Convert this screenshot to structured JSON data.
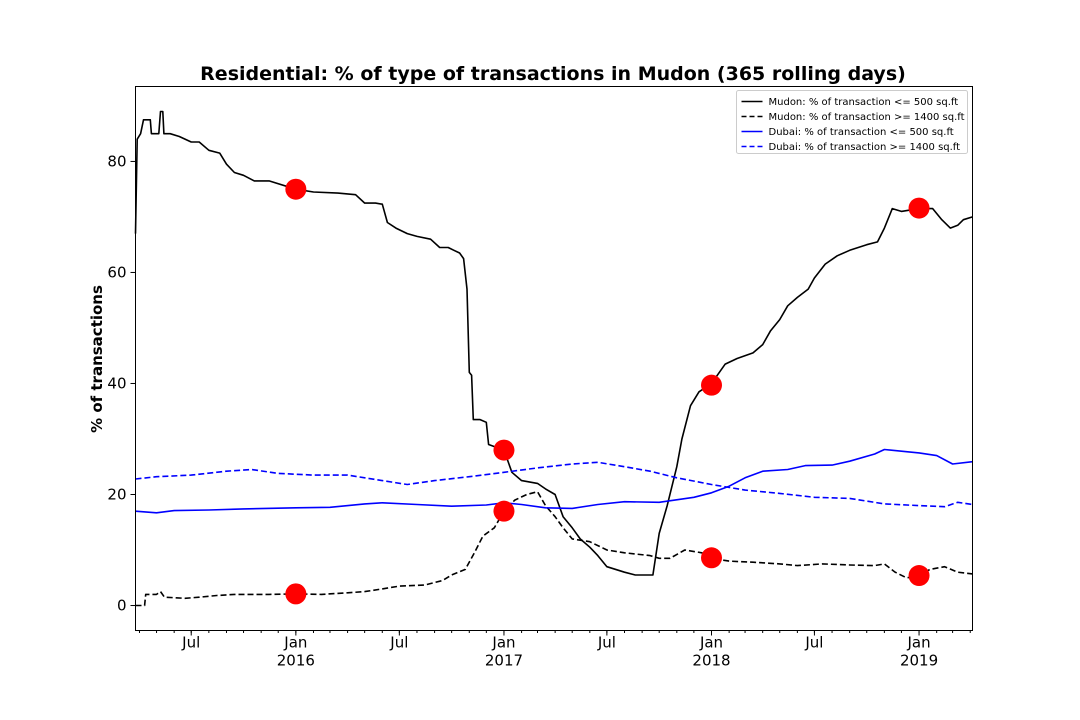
{
  "chart_data": {
    "type": "line",
    "title": "Residential: % of type of transactions in Mudon (365 rolling days)",
    "xlabel": "",
    "ylabel": "% of transactions",
    "xlim": [
      "2015-03-25",
      "2019-04-05"
    ],
    "ylim": [
      -4.5,
      93.5
    ],
    "yticks": [
      0,
      20,
      40,
      60,
      80
    ],
    "x_major_ticks": [
      {
        "date": "2015-07-01",
        "label": "Jul",
        "sublabel": ""
      },
      {
        "date": "2016-01-01",
        "label": "Jan",
        "sublabel": "2016"
      },
      {
        "date": "2016-07-01",
        "label": "Jul",
        "sublabel": ""
      },
      {
        "date": "2017-01-01",
        "label": "Jan",
        "sublabel": "2017"
      },
      {
        "date": "2017-07-01",
        "label": "Jul",
        "sublabel": ""
      },
      {
        "date": "2018-01-01",
        "label": "Jan",
        "sublabel": "2018"
      },
      {
        "date": "2018-07-01",
        "label": "Jul",
        "sublabel": ""
      },
      {
        "date": "2019-01-01",
        "label": "Jan",
        "sublabel": "2019"
      }
    ],
    "grid": false,
    "legend_position": "top-right",
    "series": [
      {
        "name": "Mudon: % of transaction <= 500 sq.ft",
        "color": "#000000",
        "style": "solid",
        "points": [
          [
            "2015-03-25",
            67
          ],
          [
            "2015-03-28",
            84
          ],
          [
            "2015-04-03",
            85
          ],
          [
            "2015-04-08",
            87.5
          ],
          [
            "2015-04-20",
            87.5
          ],
          [
            "2015-04-22",
            85
          ],
          [
            "2015-05-05",
            85
          ],
          [
            "2015-05-08",
            89
          ],
          [
            "2015-05-12",
            89
          ],
          [
            "2015-05-14",
            85
          ],
          [
            "2015-05-25",
            85
          ],
          [
            "2015-06-10",
            84.5
          ],
          [
            "2015-07-01",
            83.5
          ],
          [
            "2015-07-15",
            83.5
          ],
          [
            "2015-08-01",
            82
          ],
          [
            "2015-08-20",
            81.5
          ],
          [
            "2015-09-01",
            79.5
          ],
          [
            "2015-09-15",
            78
          ],
          [
            "2015-10-01",
            77.5
          ],
          [
            "2015-10-20",
            76.5
          ],
          [
            "2015-11-15",
            76.5
          ],
          [
            "2016-01-01",
            75
          ],
          [
            "2016-02-01",
            74.5
          ],
          [
            "2016-03-15",
            74.3
          ],
          [
            "2016-04-15",
            74
          ],
          [
            "2016-05-01",
            72.5
          ],
          [
            "2016-05-20",
            72.5
          ],
          [
            "2016-06-01",
            72.3
          ],
          [
            "2016-06-10",
            69
          ],
          [
            "2016-06-25",
            68
          ],
          [
            "2016-07-15",
            67
          ],
          [
            "2016-08-01",
            66.5
          ],
          [
            "2016-08-25",
            66
          ],
          [
            "2016-09-10",
            64.5
          ],
          [
            "2016-09-25",
            64.5
          ],
          [
            "2016-10-05",
            64
          ],
          [
            "2016-10-15",
            63.5
          ],
          [
            "2016-10-22",
            62.5
          ],
          [
            "2016-10-28",
            57
          ],
          [
            "2016-11-01",
            42
          ],
          [
            "2016-11-05",
            41.5
          ],
          [
            "2016-11-08",
            33.5
          ],
          [
            "2016-11-20",
            33.5
          ],
          [
            "2016-12-01",
            33
          ],
          [
            "2016-12-05",
            29
          ],
          [
            "2017-01-01",
            28
          ],
          [
            "2017-01-15",
            24
          ],
          [
            "2017-02-01",
            22.5
          ],
          [
            "2017-03-01",
            22
          ],
          [
            "2017-03-15",
            21
          ],
          [
            "2017-04-01",
            20
          ],
          [
            "2017-04-15",
            16
          ],
          [
            "2017-05-01",
            14
          ],
          [
            "2017-05-15",
            12
          ],
          [
            "2017-06-01",
            10.5
          ],
          [
            "2017-06-15",
            9
          ],
          [
            "2017-07-01",
            7
          ],
          [
            "2017-08-01",
            6
          ],
          [
            "2017-08-20",
            5.5
          ],
          [
            "2017-09-10",
            5.5
          ],
          [
            "2017-09-20",
            5.5
          ],
          [
            "2017-10-01",
            13
          ],
          [
            "2017-10-15",
            18
          ],
          [
            "2017-11-01",
            25
          ],
          [
            "2017-11-10",
            30
          ],
          [
            "2017-11-25",
            36
          ],
          [
            "2017-12-10",
            38.5
          ],
          [
            "2018-01-01",
            40
          ],
          [
            "2018-01-25",
            43.5
          ],
          [
            "2018-02-15",
            44.5
          ],
          [
            "2018-03-15",
            45.5
          ],
          [
            "2018-04-01",
            47
          ],
          [
            "2018-04-15",
            49.5
          ],
          [
            "2018-05-01",
            51.5
          ],
          [
            "2018-05-15",
            54
          ],
          [
            "2018-06-01",
            55.5
          ],
          [
            "2018-06-20",
            57
          ],
          [
            "2018-07-01",
            59
          ],
          [
            "2018-07-20",
            61.5
          ],
          [
            "2018-08-10",
            63
          ],
          [
            "2018-09-01",
            64
          ],
          [
            "2018-10-01",
            65
          ],
          [
            "2018-10-20",
            65.5
          ],
          [
            "2018-11-01",
            68
          ],
          [
            "2018-11-15",
            71.5
          ],
          [
            "2018-12-01",
            71
          ],
          [
            "2019-01-01",
            71.5
          ],
          [
            "2019-01-25",
            71.5
          ],
          [
            "2019-02-10",
            69.5
          ],
          [
            "2019-02-25",
            68
          ],
          [
            "2019-03-10",
            68.5
          ],
          [
            "2019-03-20",
            69.5
          ],
          [
            "2019-04-05",
            70
          ]
        ]
      },
      {
        "name": "Mudon: % of transaction >= 1400 sq.ft",
        "color": "#000000",
        "style": "dashed",
        "points": [
          [
            "2015-03-25",
            0
          ],
          [
            "2015-04-10",
            0
          ],
          [
            "2015-04-12",
            2
          ],
          [
            "2015-05-01",
            2
          ],
          [
            "2015-05-08",
            2.5
          ],
          [
            "2015-05-15",
            1.5
          ],
          [
            "2015-06-20",
            1.3
          ],
          [
            "2015-07-15",
            1.5
          ],
          [
            "2015-08-15",
            1.8
          ],
          [
            "2015-09-15",
            2
          ],
          [
            "2015-10-15",
            2
          ],
          [
            "2015-11-15",
            2
          ],
          [
            "2016-01-01",
            2.1
          ],
          [
            "2016-02-15",
            2
          ],
          [
            "2016-04-01",
            2.3
          ],
          [
            "2016-05-01",
            2.5
          ],
          [
            "2016-06-01",
            3
          ],
          [
            "2016-07-01",
            3.5
          ],
          [
            "2016-08-15",
            3.7
          ],
          [
            "2016-09-15",
            4.5
          ],
          [
            "2016-10-01",
            5.5
          ],
          [
            "2016-10-25",
            6.5
          ],
          [
            "2016-11-10",
            9.5
          ],
          [
            "2016-11-25",
            12.5
          ],
          [
            "2016-12-15",
            14
          ],
          [
            "2017-01-01",
            17
          ],
          [
            "2017-01-20",
            19
          ],
          [
            "2017-02-10",
            20
          ],
          [
            "2017-03-01",
            20.5
          ],
          [
            "2017-03-15",
            18
          ],
          [
            "2017-04-01",
            16
          ],
          [
            "2017-04-15",
            14
          ],
          [
            "2017-05-01",
            12
          ],
          [
            "2017-06-01",
            11.5
          ],
          [
            "2017-07-01",
            10
          ],
          [
            "2017-08-01",
            9.5
          ],
          [
            "2017-09-15",
            9
          ],
          [
            "2017-10-01",
            8.5
          ],
          [
            "2017-10-20",
            8.5
          ],
          [
            "2017-11-15",
            10
          ],
          [
            "2017-12-15",
            9.5
          ],
          [
            "2018-01-01",
            8.5
          ],
          [
            "2018-02-01",
            8
          ],
          [
            "2018-03-15",
            7.8
          ],
          [
            "2018-05-01",
            7.5
          ],
          [
            "2018-06-01",
            7.2
          ],
          [
            "2018-07-15",
            7.5
          ],
          [
            "2018-09-01",
            7.3
          ],
          [
            "2018-10-15",
            7.2
          ],
          [
            "2018-11-01",
            7.5
          ],
          [
            "2018-11-20",
            6
          ],
          [
            "2018-12-10",
            5
          ],
          [
            "2019-01-01",
            5.3
          ],
          [
            "2019-01-20",
            6.5
          ],
          [
            "2019-02-15",
            7
          ],
          [
            "2019-03-10",
            6
          ],
          [
            "2019-04-05",
            5.7
          ]
        ]
      },
      {
        "name": "Dubai: % of transaction <= 500 sq.ft",
        "color": "#0000ff",
        "style": "solid",
        "points": [
          [
            "2015-03-25",
            17
          ],
          [
            "2015-05-01",
            16.7
          ],
          [
            "2015-06-01",
            17.1
          ],
          [
            "2015-08-01",
            17.2
          ],
          [
            "2015-10-01",
            17.4
          ],
          [
            "2016-01-01",
            17.6
          ],
          [
            "2016-03-01",
            17.7
          ],
          [
            "2016-05-01",
            18.3
          ],
          [
            "2016-06-01",
            18.5
          ],
          [
            "2016-08-01",
            18.2
          ],
          [
            "2016-10-01",
            17.9
          ],
          [
            "2016-12-01",
            18.1
          ],
          [
            "2017-01-01",
            18.5
          ],
          [
            "2017-02-01",
            18.2
          ],
          [
            "2017-03-15",
            17.6
          ],
          [
            "2017-05-01",
            17.5
          ],
          [
            "2017-06-15",
            18.2
          ],
          [
            "2017-08-01",
            18.7
          ],
          [
            "2017-10-01",
            18.6
          ],
          [
            "2017-12-01",
            19.5
          ],
          [
            "2018-01-01",
            20.3
          ],
          [
            "2018-02-01",
            21.5
          ],
          [
            "2018-03-01",
            23
          ],
          [
            "2018-04-01",
            24.2
          ],
          [
            "2018-05-15",
            24.5
          ],
          [
            "2018-06-15",
            25.2
          ],
          [
            "2018-08-01",
            25.3
          ],
          [
            "2018-09-01",
            26
          ],
          [
            "2018-10-15",
            27.3
          ],
          [
            "2018-11-01",
            28.1
          ],
          [
            "2018-12-01",
            27.8
          ],
          [
            "2019-01-01",
            27.5
          ],
          [
            "2019-02-01",
            27
          ],
          [
            "2019-03-01",
            25.5
          ],
          [
            "2019-04-05",
            25.9
          ]
        ]
      },
      {
        "name": "Dubai: % of transaction >= 1400 sq.ft",
        "color": "#0000ff",
        "style": "dashed",
        "points": [
          [
            "2015-03-25",
            22.8
          ],
          [
            "2015-05-01",
            23.2
          ],
          [
            "2015-07-01",
            23.5
          ],
          [
            "2015-09-01",
            24.2
          ],
          [
            "2015-10-15",
            24.5
          ],
          [
            "2015-12-01",
            23.8
          ],
          [
            "2016-02-01",
            23.5
          ],
          [
            "2016-04-01",
            23.5
          ],
          [
            "2016-06-01",
            22.5
          ],
          [
            "2016-07-15",
            21.8
          ],
          [
            "2016-09-01",
            22.5
          ],
          [
            "2016-11-01",
            23.2
          ],
          [
            "2017-01-01",
            24
          ],
          [
            "2017-03-01",
            24.8
          ],
          [
            "2017-05-01",
            25.5
          ],
          [
            "2017-06-15",
            25.8
          ],
          [
            "2017-08-01",
            25
          ],
          [
            "2017-09-15",
            24.2
          ],
          [
            "2017-11-01",
            23
          ],
          [
            "2018-01-01",
            21.8
          ],
          [
            "2018-03-01",
            20.8
          ],
          [
            "2018-05-01",
            20.2
          ],
          [
            "2018-07-01",
            19.5
          ],
          [
            "2018-09-01",
            19.3
          ],
          [
            "2018-11-01",
            18.3
          ],
          [
            "2019-01-01",
            18
          ],
          [
            "2019-02-15",
            17.8
          ],
          [
            "2019-03-10",
            18.6
          ],
          [
            "2019-04-05",
            18.2
          ]
        ]
      }
    ],
    "markers": {
      "color": "#ff0000",
      "points": [
        [
          "2016-01-01",
          75
        ],
        [
          "2017-01-01",
          28
        ],
        [
          "2018-01-01",
          39.7
        ],
        [
          "2019-01-01",
          71.6
        ],
        [
          "2016-01-01",
          2.1
        ],
        [
          "2017-01-01",
          17
        ],
        [
          "2018-01-01",
          8.6
        ],
        [
          "2019-01-01",
          5.4
        ]
      ]
    }
  }
}
